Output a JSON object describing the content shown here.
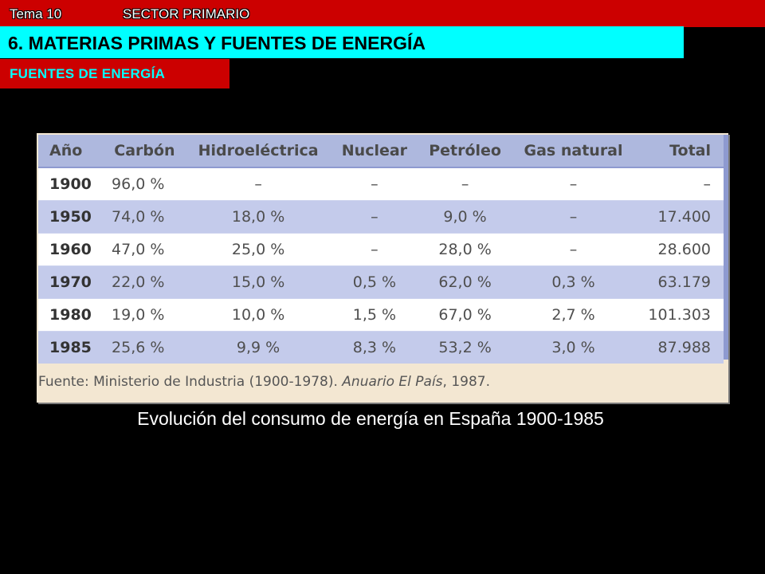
{
  "header": {
    "tema": "Tema 10",
    "sector": "SECTOR PRIMARIO",
    "title": "6. MATERIAS PRIMAS Y FUENTES DE ENERGÍA",
    "subtitle": "FUENTES DE ENERGÍA"
  },
  "table": {
    "columns": [
      "Año",
      "Carbón",
      "Hidroeléctrica",
      "Nuclear",
      "Petróleo",
      "Gas natural",
      "Total"
    ],
    "rows": [
      [
        "1900",
        "96,0 %",
        "–",
        "–",
        "–",
        "–",
        "–"
      ],
      [
        "1950",
        "74,0 %",
        "18,0 %",
        "–",
        "9,0 %",
        "–",
        "17.400"
      ],
      [
        "1960",
        "47,0 %",
        "25,0 %",
        "–",
        "28,0 %",
        "–",
        "28.600"
      ],
      [
        "1970",
        "22,0 %",
        "15,0 %",
        "0,5 %",
        "62,0 %",
        "0,3 %",
        "63.179"
      ],
      [
        "1980",
        "19,0 %",
        "10,0 %",
        "1,5 %",
        "67,0 %",
        "2,7 %",
        "101.303"
      ],
      [
        "1985",
        "25,6 %",
        "9,9 %",
        "8,3 %",
        "53,2 %",
        "3,0 %",
        "87.988"
      ]
    ],
    "source_prefix": "Fuente: Ministerio de Industria (1900-1978). ",
    "source_italic": "Anuario El País",
    "source_suffix": ", 1987."
  },
  "caption": "Evolución del consumo de energía en España 1900-1985",
  "colors": {
    "top_bar": "#cc0000",
    "title_bar": "#00ffff",
    "table_header": "#aeb8de",
    "table_stripe": "#c4cbeb",
    "source_bg": "#f3e7d2"
  }
}
